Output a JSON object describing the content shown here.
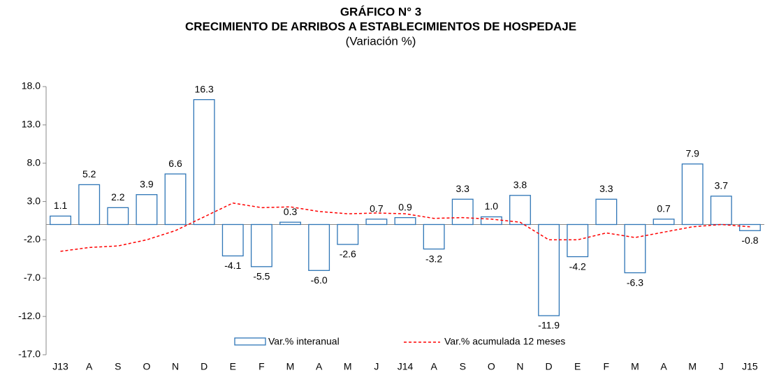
{
  "chart_data": {
    "type": "bar",
    "title": "GRÁFICO N° 3",
    "subtitle": "CRECIMIENTO DE ARRIBOS A ESTABLECIMIENTOS DE HOSPEDAJE",
    "unit_note": "(Variación %)",
    "categories": [
      "J13",
      "A",
      "S",
      "O",
      "N",
      "D",
      "E",
      "F",
      "M",
      "A",
      "M",
      "J",
      "J14",
      "A",
      "S",
      "O",
      "N",
      "D",
      "E",
      "F",
      "M",
      "A",
      "M",
      "J",
      "J15"
    ],
    "series": [
      {
        "name": "Var.% interanual",
        "type": "bar",
        "color": "#2e75b6",
        "values": [
          1.1,
          5.2,
          2.2,
          3.9,
          6.6,
          16.3,
          -4.1,
          -5.5,
          0.3,
          -6.0,
          -2.6,
          0.7,
          0.9,
          -3.2,
          3.3,
          1.0,
          3.8,
          -11.9,
          -4.2,
          3.3,
          -6.3,
          0.7,
          7.9,
          3.7,
          -0.8
        ],
        "value_labels": [
          "1.1",
          "5.2",
          "2.2",
          "3.9",
          "6.6",
          "16.3",
          "-4.1",
          "-5.5",
          "0.3",
          "-6.0",
          "-2.6",
          "0.7",
          "0.9",
          "-3.2",
          "3.3",
          "1.0",
          "3.8",
          "-11.9",
          "-4.2",
          "3.3",
          "-6.3",
          "0.7",
          "7.9",
          "3.7",
          "-0.8"
        ]
      },
      {
        "name": "Var.% acumulada 12 meses",
        "type": "line",
        "color": "#ff0000",
        "values": [
          -3.5,
          -3.0,
          -2.8,
          -2.0,
          -0.8,
          1.0,
          2.8,
          2.2,
          2.3,
          1.7,
          1.4,
          1.5,
          1.4,
          0.8,
          0.9,
          0.7,
          0.3,
          -2.0,
          -2.0,
          -1.1,
          -1.7,
          -1.0,
          -0.3,
          0.0,
          -0.3
        ]
      }
    ],
    "ylim": [
      -17,
      18
    ],
    "yticks": [
      {
        "value": 18,
        "label": "18.0"
      },
      {
        "value": 13,
        "label": "13.0"
      },
      {
        "value": 8,
        "label": "8.0"
      },
      {
        "value": 3,
        "label": "3.0"
      },
      {
        "value": -2,
        "label": "-2.0"
      },
      {
        "value": -7,
        "label": "-7.0"
      },
      {
        "value": -12,
        "label": "-12.0"
      },
      {
        "value": -17,
        "label": "-17.0"
      }
    ],
    "grid": false
  }
}
